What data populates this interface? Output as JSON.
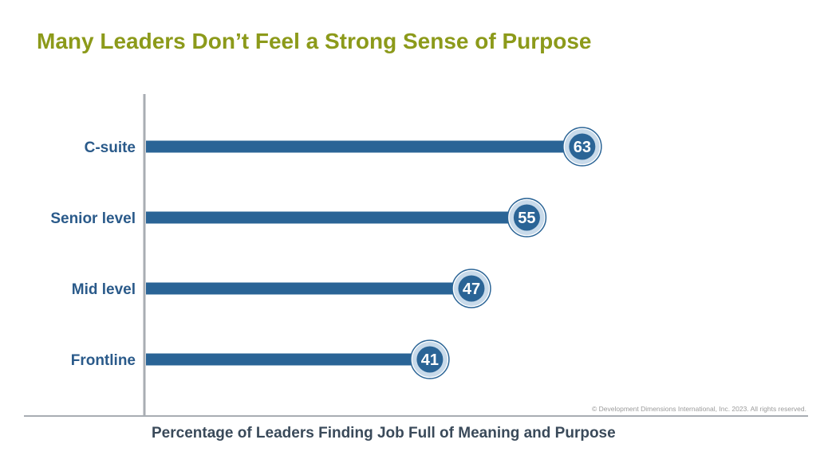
{
  "chart_data": {
    "type": "bar",
    "orientation": "horizontal",
    "title": "Many Leaders Don’t Feel a Strong Sense of Purpose",
    "xlabel": "Percentage of Leaders Finding Job Full of Meaning and Purpose",
    "ylabel": "",
    "categories": [
      "C-suite",
      "Senior level",
      "Mid level",
      "Frontline"
    ],
    "values": [
      63,
      55,
      47,
      41
    ],
    "xlim": [
      0,
      100
    ],
    "grid": false,
    "legend": "none"
  },
  "copyright": "© Development Dimensions International, Inc. 2023. All rights reserved.",
  "colors": {
    "title": "#8c9a1a",
    "bar": "#2a6496",
    "category_label": "#2a5a8a",
    "marker_ring": "#c8daea",
    "axis": "#a8adb3"
  }
}
